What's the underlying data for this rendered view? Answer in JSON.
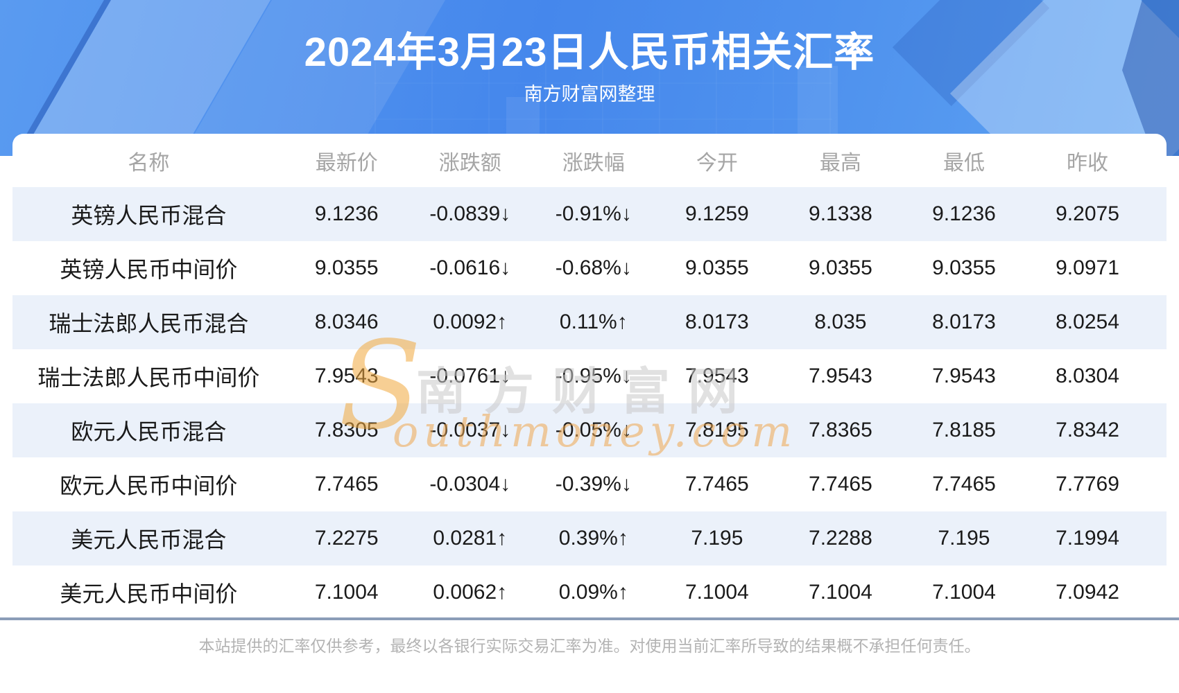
{
  "banner": {
    "title": "2024年3月23日人民币相关汇率",
    "subtitle": "南方财富网整理"
  },
  "table": {
    "columns": [
      "名称",
      "最新价",
      "涨跌额",
      "涨跌幅",
      "今开",
      "最高",
      "最低",
      "昨收"
    ],
    "rows": [
      {
        "name": "英镑人民币混合",
        "latest": "9.1236",
        "change": "-0.0839↓",
        "change_pct": "-0.91%↓",
        "trend": "down",
        "open": "9.1259",
        "high": "9.1338",
        "low": "9.1236",
        "prev_close": "9.2075"
      },
      {
        "name": "英镑人民币中间价",
        "latest": "9.0355",
        "change": "-0.0616↓",
        "change_pct": "-0.68%↓",
        "trend": "down",
        "open": "9.0355",
        "high": "9.0355",
        "low": "9.0355",
        "prev_close": "9.0971"
      },
      {
        "name": "瑞士法郎人民币混合",
        "latest": "8.0346",
        "change": "0.0092↑",
        "change_pct": "0.11%↑",
        "trend": "up",
        "open": "8.0173",
        "high": "8.035",
        "low": "8.0173",
        "prev_close": "8.0254"
      },
      {
        "name": "瑞士法郎人民币中间价",
        "latest": "7.9543",
        "change": "-0.0761↓",
        "change_pct": "-0.95%↓",
        "trend": "down",
        "open": "7.9543",
        "high": "7.9543",
        "low": "7.9543",
        "prev_close": "8.0304"
      },
      {
        "name": "欧元人民币混合",
        "latest": "7.8305",
        "change": "-0.0037↓",
        "change_pct": "-0.05%↓",
        "trend": "down",
        "open": "7.8195",
        "high": "7.8365",
        "low": "7.8185",
        "prev_close": "7.8342"
      },
      {
        "name": "欧元人民币中间价",
        "latest": "7.7465",
        "change": "-0.0304↓",
        "change_pct": "-0.39%↓",
        "trend": "down",
        "open": "7.7465",
        "high": "7.7465",
        "low": "7.7465",
        "prev_close": "7.7769"
      },
      {
        "name": "美元人民币混合",
        "latest": "7.2275",
        "change": "0.0281↑",
        "change_pct": "0.39%↑",
        "trend": "up",
        "open": "7.195",
        "high": "7.2288",
        "low": "7.195",
        "prev_close": "7.1994"
      },
      {
        "name": "美元人民币中间价",
        "latest": "7.1004",
        "change": "0.0062↑",
        "change_pct": "0.09%↑",
        "trend": "up",
        "open": "7.1004",
        "high": "7.1004",
        "low": "7.1004",
        "prev_close": "7.0942"
      }
    ]
  },
  "watermark": {
    "initial": "S",
    "cn": "南方财富网",
    "en": "outhmoney.com"
  },
  "footer": {
    "disclaimer": "本站提供的汇率仅供参考，最终以各银行实际交易汇率为准。对使用当前汇率所导致的结果概不承担任何责任。"
  },
  "colors": {
    "up_red": "#f20000",
    "down_green": "#0b7d0b",
    "banner_blue": "#4587ec",
    "row_stripe": "#ebf1fa",
    "divider": "#8b9db8",
    "header_text_gray": "#a5a5a5"
  }
}
